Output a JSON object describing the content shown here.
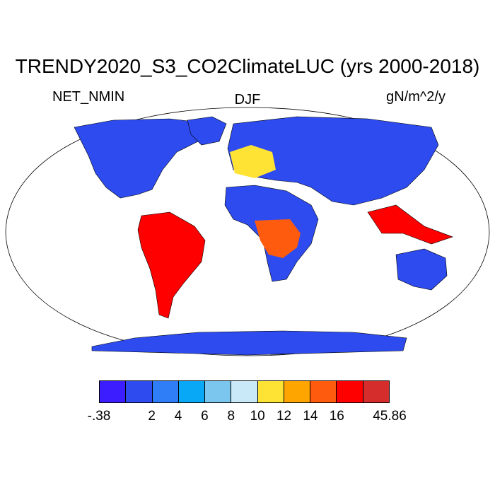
{
  "title": "TRENDY2020_S3_CO2ClimateLUC (yrs 2000-2018)",
  "variable_label": "NET_NMIN",
  "season_label": "DJF",
  "units_label": "gN/m^2/y",
  "projection": "Robinson",
  "colorbar": {
    "colors": [
      "#3c1dff",
      "#2d4bee",
      "#2f7ef7",
      "#08a8f7",
      "#7ac6ee",
      "#c9e8f8",
      "#ffe334",
      "#ffa500",
      "#ff5b0e",
      "#ff0000",
      "#d42d2b"
    ],
    "labels": [
      {
        "text": "-.38",
        "boundary": 0
      },
      {
        "text": "2",
        "boundary": 2
      },
      {
        "text": "4",
        "boundary": 3
      },
      {
        "text": "6",
        "boundary": 4
      },
      {
        "text": "8",
        "boundary": 5
      },
      {
        "text": "10",
        "boundary": 6
      },
      {
        "text": "12",
        "boundary": 7
      },
      {
        "text": "14",
        "boundary": 8
      },
      {
        "text": "16",
        "boundary": 9
      },
      {
        "text": "45.86",
        "boundary": 11
      }
    ]
  },
  "regions": [
    {
      "name": "north-america",
      "color": "#2d4bee"
    },
    {
      "name": "greenland",
      "color": "#2d4bee"
    },
    {
      "name": "eurasia",
      "color": "#2d4bee"
    },
    {
      "name": "europe-highlight",
      "color": "#ffe334"
    },
    {
      "name": "africa",
      "color": "#2d4bee"
    },
    {
      "name": "central-africa",
      "color": "#ff5b0e"
    },
    {
      "name": "south-america",
      "color": "#ff0000"
    },
    {
      "name": "southeast-asia",
      "color": "#ff0000"
    },
    {
      "name": "australia",
      "color": "#2d4bee"
    },
    {
      "name": "antarctica",
      "color": "#2d4bee"
    }
  ]
}
